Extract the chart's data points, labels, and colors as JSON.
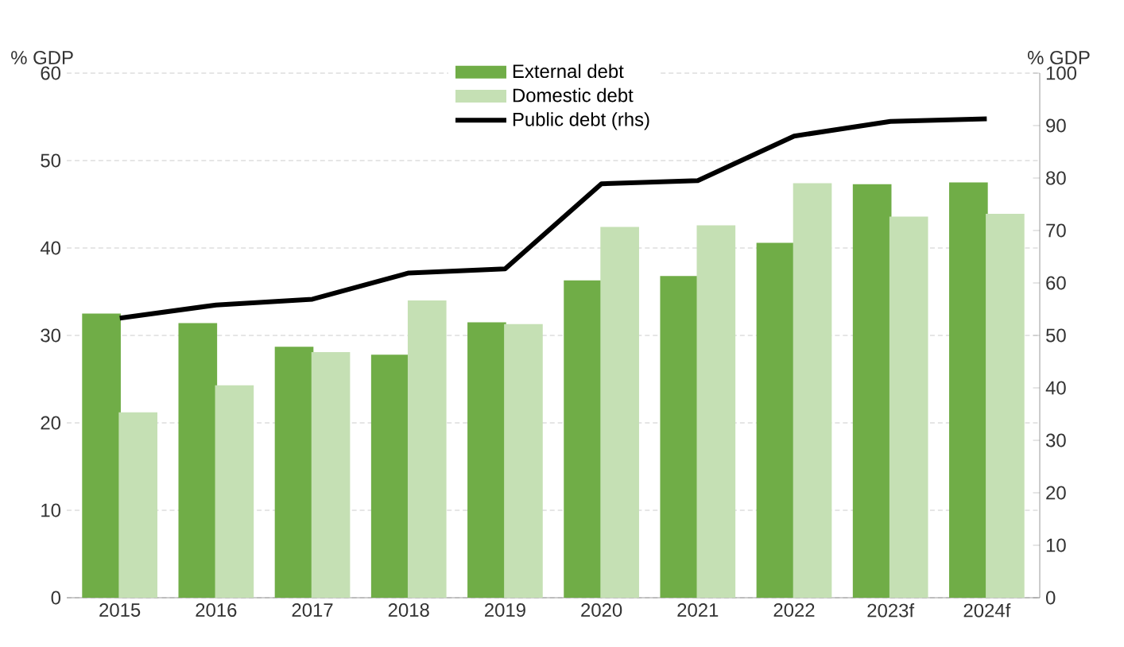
{
  "chart_data": {
    "type": "bar",
    "ylabel": "% GDP",
    "y2label": "% GDP",
    "categories": [
      "2015",
      "2016",
      "2017",
      "2018",
      "2019",
      "2020",
      "2021",
      "2022",
      "2023f",
      "2024f"
    ],
    "series": [
      {
        "name": "External debt",
        "color": "#70ad47",
        "values": [
          32.5,
          31.4,
          28.7,
          27.8,
          31.5,
          36.3,
          36.8,
          40.6,
          47.3,
          47.5
        ]
      },
      {
        "name": "Domestic debt",
        "color": "#c5e0b4",
        "values": [
          21.2,
          24.3,
          28.1,
          34.0,
          31.3,
          42.4,
          42.6,
          47.4,
          43.6,
          43.9
        ]
      },
      {
        "name": "Public debt (rhs)",
        "type": "line",
        "axis": "y2",
        "color": "#000000",
        "values": [
          53.3,
          55.8,
          56.9,
          61.9,
          62.7,
          78.9,
          79.5,
          88.0,
          90.8,
          91.3
        ]
      }
    ],
    "ylim": [
      0,
      60
    ],
    "yticks": [
      0,
      10,
      20,
      30,
      40,
      50,
      60
    ],
    "y2lim": [
      0,
      100
    ],
    "y2ticks": [
      0,
      10,
      20,
      30,
      40,
      50,
      60,
      70,
      80,
      90,
      100
    ],
    "grid": "y",
    "legend": "top"
  }
}
